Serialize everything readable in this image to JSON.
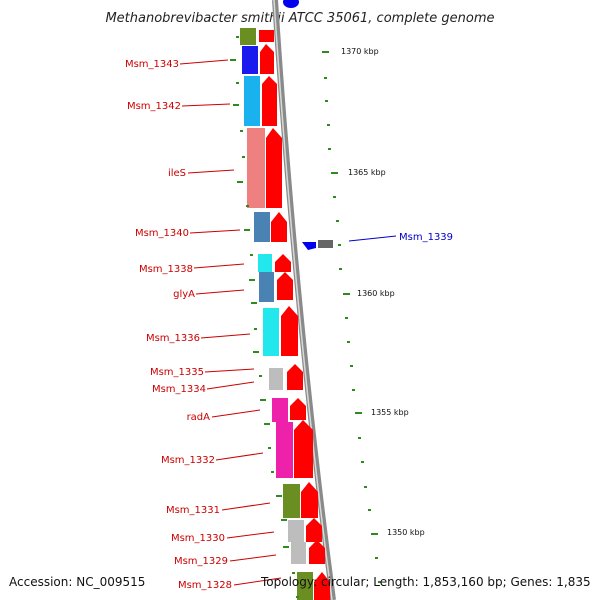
{
  "title": "Methanobrevibacter smithii ATCC 35061, complete genome",
  "footer": {
    "accession": "Accession: NC_009515",
    "topology": "Topology: circular; Length: 1,853,160 bp; Genes: 1,835"
  },
  "colors": {
    "label_red": "#cc0000",
    "label_blue": "#0000cc",
    "backbone": "#8a8a8a",
    "tick_green": "#2e8b1e",
    "arrow_red": "#ff0000",
    "arrow_blue": "#0000ee",
    "arrow_grey": "#666666"
  },
  "kbp_markers": [
    "1370 kbp",
    "1365 kbp",
    "1360 kbp",
    "1355 kbp",
    "1350 kbp"
  ],
  "genes": [
    {
      "name": "Msm_1343",
      "color": "#1a1aee",
      "strand": "forward"
    },
    {
      "name": "Msm_1342",
      "color": "#1ab2ee",
      "strand": "forward"
    },
    {
      "name": "ileS",
      "color": "#ee8080",
      "strand": "forward"
    },
    {
      "name": "Msm_1340",
      "color": "#4a82b4",
      "strand": "forward"
    },
    {
      "name": "Msm_1339",
      "color": "#666666",
      "strand": "reverse"
    },
    {
      "name": "Msm_1338",
      "color": "#22e8ee",
      "strand": "forward"
    },
    {
      "name": "glyA",
      "color": "#4a82b4",
      "strand": "forward"
    },
    {
      "name": "Msm_1336",
      "color": "#22e8ee",
      "strand": "forward"
    },
    {
      "name": "Msm_1335",
      "color": "#bdbdbd",
      "strand": "forward"
    },
    {
      "name": "Msm_1334",
      "color": "#bdbdbd",
      "strand": "forward"
    },
    {
      "name": "radA",
      "color": "#ee22aa",
      "strand": "forward"
    },
    {
      "name": "Msm_1332",
      "color": "#ee22aa",
      "strand": "forward"
    },
    {
      "name": "Msm_1331",
      "color": "#6b8e23",
      "strand": "forward"
    },
    {
      "name": "Msm_1330",
      "color": "#bdbdbd",
      "strand": "forward"
    },
    {
      "name": "Msm_1329",
      "color": "#bdbdbd",
      "strand": "forward"
    },
    {
      "name": "Msm_1328",
      "color": "#6b8e23",
      "strand": "forward"
    }
  ]
}
